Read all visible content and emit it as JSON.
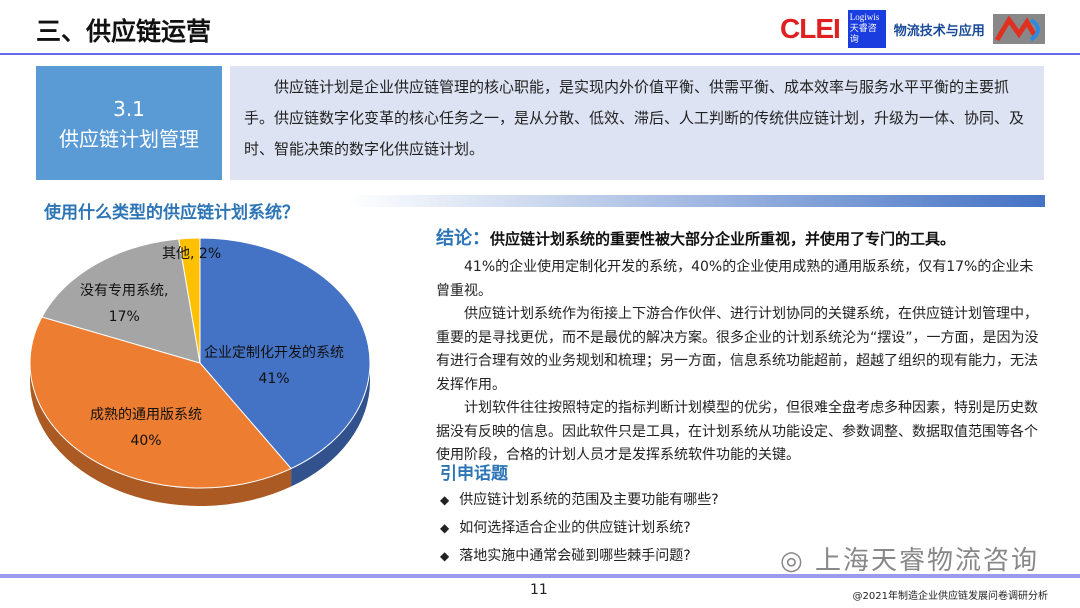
{
  "title": "三、供应链运营",
  "logos": {
    "clei": "CLEI",
    "logiwis": "Logiwis",
    "logiwis_cn": "天睿咨询",
    "wuliu": "物流技术与应用"
  },
  "section": {
    "number": "3.1",
    "name": "供应链计划管理"
  },
  "intro": "供应链计划是企业供应链管理的核心职能，是实现内外价值平衡、供需平衡、成本效率与服务水平平衡的主要抓手。供应链数字化变革的核心任务之一，是从分散、低效、滞后、人工判断的传统供应链计划，升级为一体、协同、及时、智能决策的数字化供应链计划。",
  "question": "使用什么类型的供应链计划系统？",
  "chart_data": {
    "type": "pie",
    "title": "",
    "categories": [
      "企业定制化开发的系统",
      "成熟的通用版系统",
      "没有专用系统",
      "其他"
    ],
    "values": [
      41,
      40,
      17,
      2
    ],
    "labels": [
      "41%",
      "40%",
      "17%",
      "2%"
    ],
    "colors": [
      "#4472c4",
      "#ed7d31",
      "#a5a5a5",
      "#ffc000"
    ]
  },
  "conclusion": {
    "label": "结论：",
    "text": "供应链计划系统的重要性被大部分企业所重视，并使用了专门的工具。"
  },
  "paragraphs": [
    "41%的企业使用定制化开发的系统，40%的企业使用成熟的通用版系统，仅有17%的企业未曾重视。",
    "供应链计划系统作为衔接上下游合作伙伴、进行计划协同的关键系统，在供应链计划管理中，重要的是寻找更优，而不是最优的解决方案。很多企业的计划系统沦为“摆设”，一方面，是因为没有进行合理有效的业务规划和梳理；另一方面，信息系统功能超前，超越了组织的现有能力，无法发挥作用。",
    "计划软件往往按照特定的指标判断计划模型的优劣，但很难全盘考虑多种因素，特别是历史数据没有反映的信息。因此软件只是工具，在计划系统从功能设定、参数调整、数据取值范围等各个使用阶段，合格的计划人员才是发挥系统软件功能的关键。"
  ],
  "further": {
    "heading": "引申话题",
    "items": [
      "供应链计划系统的范围及主要功能有哪些?",
      "如何选择适合企业的供应链计划系统?",
      "落地实施中通常会碰到哪些棘手问题?"
    ]
  },
  "wechat": "上海天睿物流咨询",
  "page": "11",
  "footer": "@2021年制造企业供应链发展问卷调研分析"
}
